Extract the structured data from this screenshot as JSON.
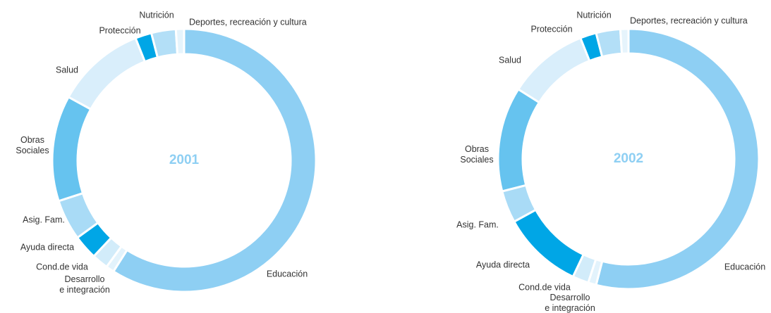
{
  "chart_data": [
    {
      "type": "donut",
      "title": "2001",
      "categories": [
        "Educación",
        "Desarrollo e integración",
        "Cond.de vida",
        "Ayuda directa",
        "Asig. Fam.",
        "Obras Sociales",
        "Salud",
        "Protección",
        "Nutrición",
        "Deportes, recreación y cultura"
      ],
      "values": [
        59,
        1,
        2,
        3,
        5,
        13,
        11,
        2,
        3,
        1
      ],
      "colors": [
        "#8ecff3",
        "#e3f3fc",
        "#d2ecfa",
        "#00a6e6",
        "#a9dbf6",
        "#66c3ef",
        "#d9eefb",
        "#00a6e6",
        "#b3dff7",
        "#e6f4fc"
      ]
    },
    {
      "type": "donut",
      "title": "2002",
      "categories": [
        "Educación",
        "Desarrollo e integración",
        "Cond.de vida",
        "Ayuda directa",
        "Asig. Fam.",
        "Obras Sociales",
        "Salud",
        "Protección",
        "Nutrición",
        "Deportes, recreación y cultura"
      ],
      "values": [
        54,
        1,
        2,
        10,
        4,
        13,
        10,
        2,
        3,
        1
      ],
      "colors": [
        "#8ecff3",
        "#e3f3fc",
        "#d2ecfa",
        "#00a6e6",
        "#a9dbf6",
        "#66c3ef",
        "#d9eefb",
        "#00a6e6",
        "#b3dff7",
        "#e6f4fc"
      ]
    }
  ]
}
